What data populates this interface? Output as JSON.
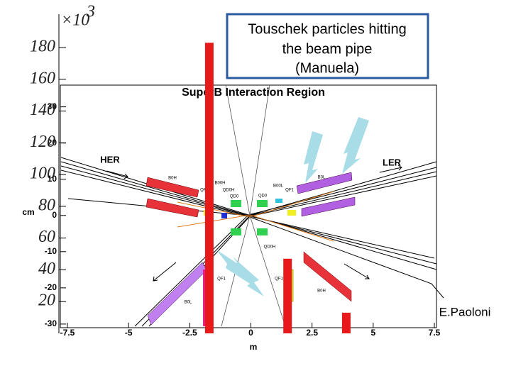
{
  "chart_data": {
    "type": "bar",
    "x": [
      -1.7,
      1.5,
      3.9
    ],
    "values": [
      183,
      47,
      13
    ],
    "color": "#e8191a",
    "xlim": [
      -7.5,
      7.5
    ],
    "ylim": [
      0,
      201
    ],
    "yticks": [
      20,
      40,
      60,
      80,
      100,
      120,
      140,
      160,
      180
    ],
    "scale_label": "×10",
    "scale_exponent": "3"
  },
  "diagram": {
    "title": "SuperB Interaction Region",
    "x_label": "m",
    "y_label": "cm",
    "xlim": [
      -7.5,
      7.5
    ],
    "ylim": [
      -31,
      36
    ],
    "xticks": [
      -7.5,
      -5,
      -2.5,
      0,
      2.5,
      5,
      7.5
    ],
    "yticks": [
      -30,
      -20,
      -10,
      0,
      10,
      20,
      30
    ],
    "labels": [
      "HER",
      "LER",
      "B0H",
      "B00H",
      "QF1",
      "QD0H",
      "QD0",
      "QD0",
      "B00L",
      "QF1",
      "B0L",
      "QD0H",
      "QF1",
      "QF1",
      "B0L",
      "B0H"
    ]
  },
  "callout": {
    "lines": [
      "Touschek particles hitting",
      "the beam pipe",
      "(Manuela)"
    ]
  },
  "credit": "E.Paoloni"
}
